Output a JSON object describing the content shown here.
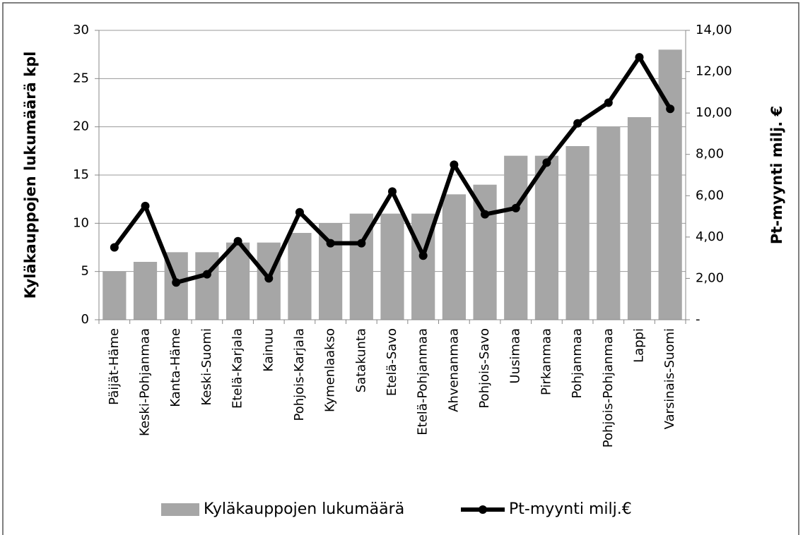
{
  "chart_data": {
    "type": "bar-line",
    "y_label": "Kyläkauppojen lukumäärä kpl",
    "y2_label": "Pt-myynti milj. €",
    "categories": [
      "Päijät-Häme",
      "Keski-Pohjanmaa",
      "Kanta-Häme",
      "Keski-Suomi",
      "Etelä-Karjala",
      "Kainuu",
      "Pohjois-Karjala",
      "Kymenlaakso",
      "Satakunta",
      "Etelä-Savo",
      "Etelä-Pohjanmaa",
      "Ahvenanmaa",
      "Pohjois-Savo",
      "Uusimaa",
      "Pirkanmaa",
      "Pohjanmaa",
      "Pohjois-Pohjanmaa",
      "Lappi",
      "Varsinais-Suomi"
    ],
    "series": [
      {
        "name": "Kyläkauppojen lukumäärä",
        "type": "bar",
        "color": "#a6a6a6",
        "values": [
          5,
          6,
          7,
          7,
          8,
          8,
          9,
          10,
          11,
          11,
          11,
          13,
          14,
          17,
          17,
          18,
          20,
          21,
          28
        ]
      },
      {
        "name": "Pt-myynti milj.€",
        "type": "line",
        "axis": "y2",
        "color": "#000000",
        "values": [
          3.5,
          5.5,
          1.8,
          2.2,
          3.8,
          2.0,
          5.2,
          3.7,
          3.7,
          6.2,
          3.1,
          7.5,
          5.1,
          5.4,
          7.6,
          9.5,
          10.5,
          12.7,
          10.2
        ]
      }
    ],
    "ylim": [
      0,
      30
    ],
    "yticks": [
      0,
      5,
      10,
      15,
      20,
      25,
      30
    ],
    "y2lim": [
      0,
      14
    ],
    "y2ticks": [
      {
        "value": 0,
        "label": "-"
      },
      {
        "value": 2,
        "label": "2,00"
      },
      {
        "value": 4,
        "label": "4,00"
      },
      {
        "value": 6,
        "label": "6,00"
      },
      {
        "value": 8,
        "label": "8,00"
      },
      {
        "value": 10,
        "label": "10,00"
      },
      {
        "value": 12,
        "label": "12,00"
      },
      {
        "value": 14,
        "label": "14,00"
      }
    ],
    "grid": true,
    "legend": "bottom"
  }
}
